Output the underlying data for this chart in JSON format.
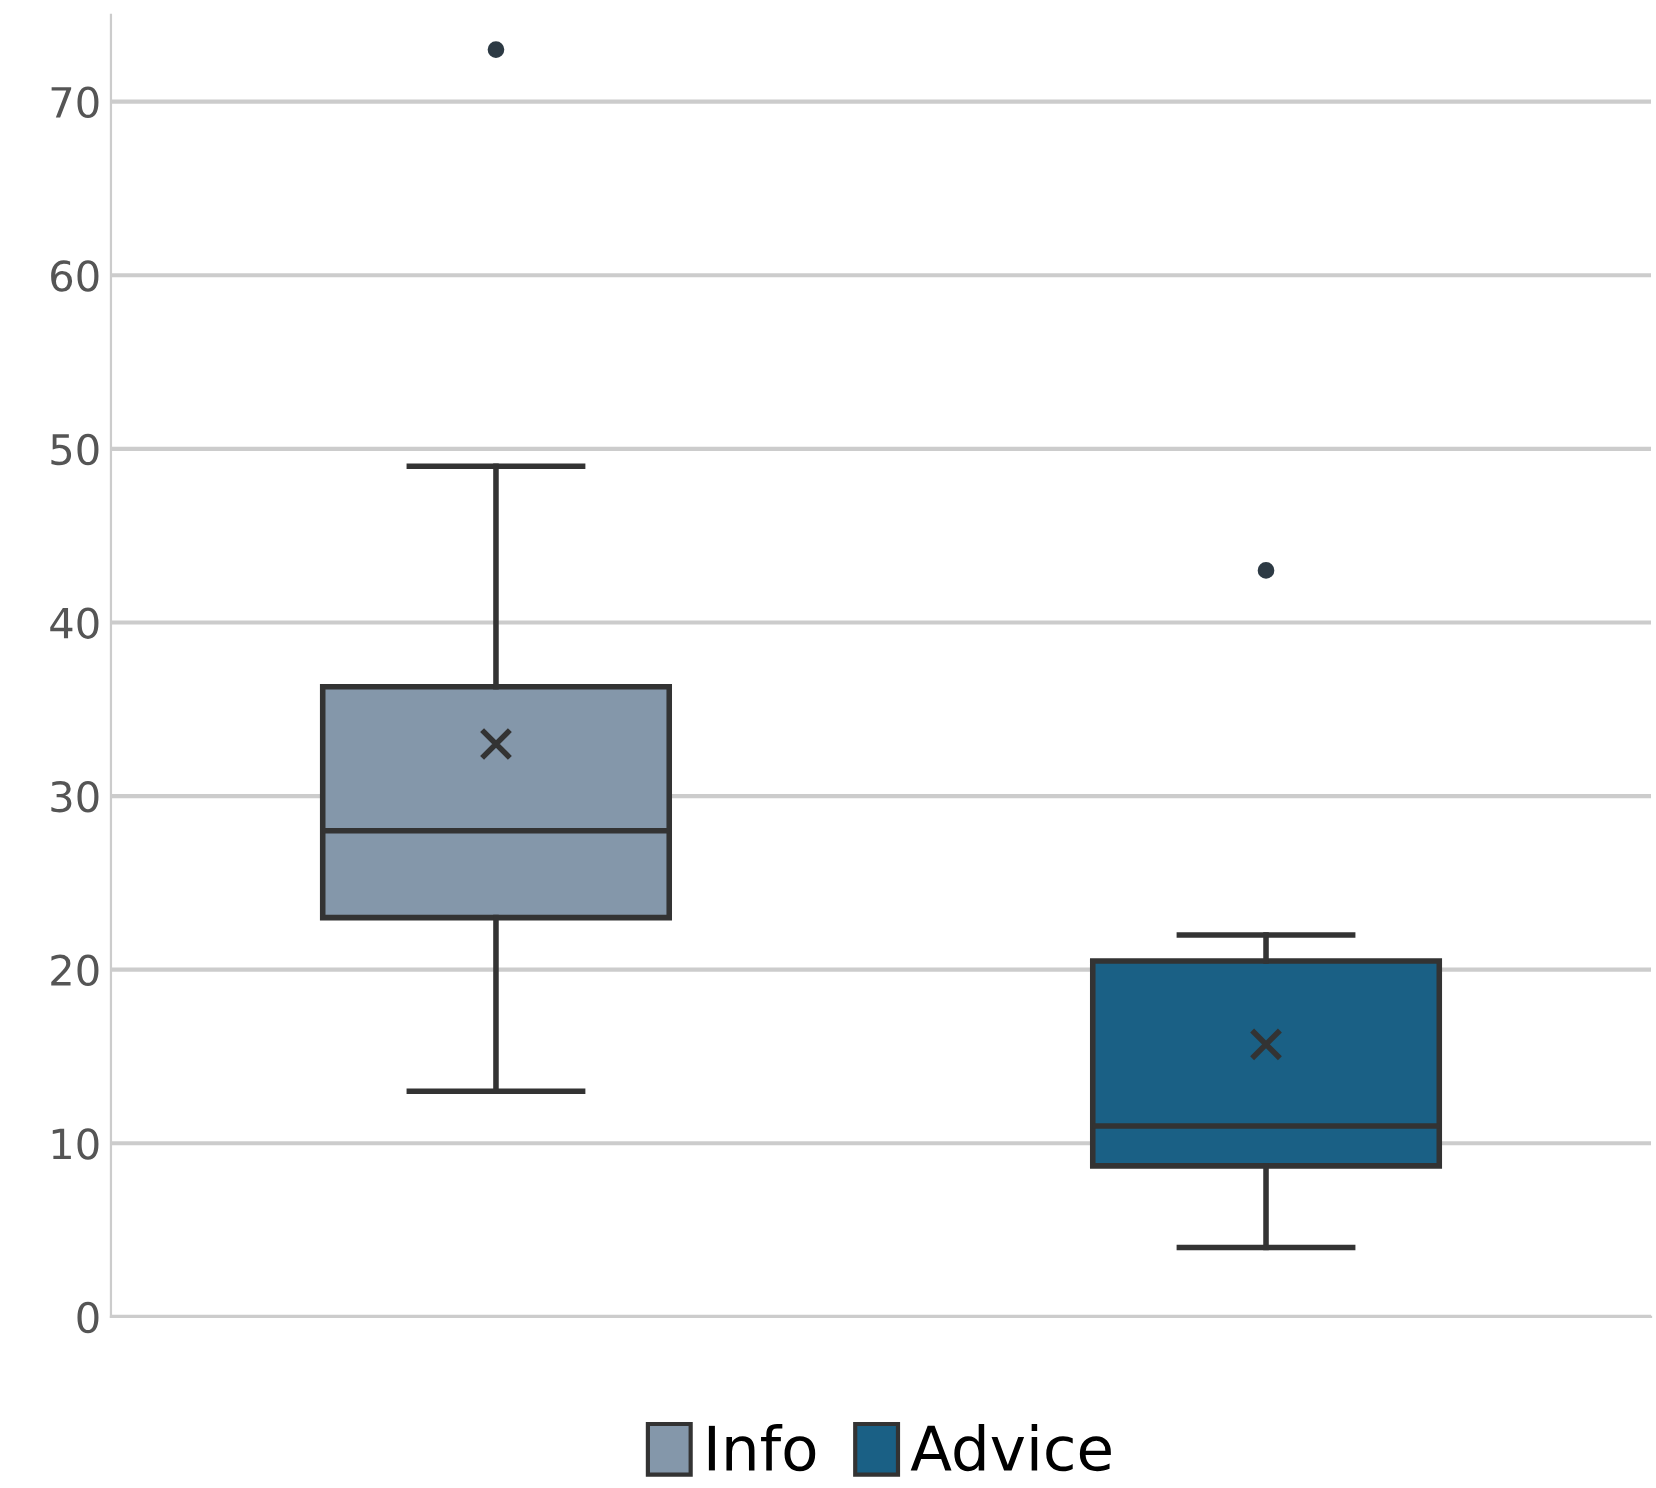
{
  "chart_data": {
    "type": "box",
    "categories": [
      null,
      null
    ],
    "series": [
      {
        "name": "Info",
        "color": "#8497aa",
        "boxes": [
          {
            "low": 13,
            "q1": 23,
            "median": 28,
            "q3": 36.3,
            "high": 49,
            "mean": 33,
            "outliers": [
              73
            ]
          },
          null
        ]
      },
      {
        "name": "Advice",
        "color": "#1a6085",
        "boxes": [
          null,
          {
            "low": 4,
            "q1": 8.7,
            "median": 11,
            "q3": 20.5,
            "high": 22,
            "mean": 15.7,
            "outliers": [
              43
            ]
          }
        ]
      }
    ],
    "ylim": [
      0,
      75
    ],
    "yticks": [
      0,
      10,
      20,
      30,
      40,
      50,
      60,
      70
    ],
    "grid": "y",
    "legend": "bottom"
  }
}
